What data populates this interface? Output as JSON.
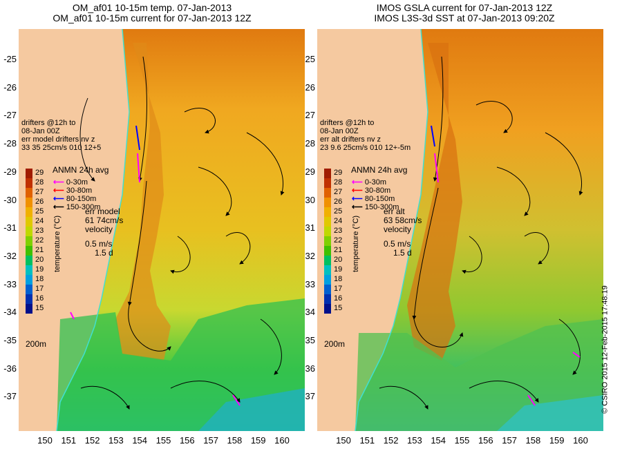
{
  "left_panel": {
    "title_line1": "OM_af01 10-15m temp. 07-Jan-2013",
    "title_line2": "OM_af01 10-15m current for 07-Jan-2013 12Z",
    "drifters_line1": "drifters @12h to",
    "drifters_line2": "08-Jan 00Z",
    "drifters_line3": "err model drifters nv z",
    "drifters_line4": "33    35    25cm/s 010 12+5",
    "legend_title": "ANMN 24h avg",
    "err_line1": "err model",
    "err_line2": "61 74cm/s",
    "velocity": "velocity",
    "scale_speed": "0.5 m/s",
    "scale_time": "1.5 d",
    "isobath": "200m"
  },
  "right_panel": {
    "title_line1": "IMOS GSLA current for 07-Jan-2013 12Z",
    "title_line2": "IMOS L3S-3d SST at 07-Jan-2013 09:20Z",
    "drifters_line1": "drifters @12h to",
    "drifters_line2": "08-Jan 00Z",
    "drifters_line3": "err alt drifters nv z",
    "drifters_line4": "23 9.6 25cm/s 010 12+-5m",
    "legend_title": "ANMN 24h avg",
    "err_line1": "err alt",
    "err_line2": "63 58cm/s",
    "velocity": "velocity",
    "scale_speed": "0.5 m/s",
    "scale_time": "1.5 d",
    "isobath": "200m"
  },
  "depth_legend": [
    {
      "label": "0-30m",
      "color": "#ff00ff"
    },
    {
      "label": "30-80m",
      "color": "#ff0000"
    },
    {
      "label": "80-150m",
      "color": "#0000ff"
    },
    {
      "label": "150-300m",
      "color": "#000000"
    }
  ],
  "colorbar": {
    "title": "temperature (°C)",
    "ticks": [
      "29",
      "28",
      "27",
      "26",
      "25",
      "24",
      "23",
      "22",
      "21",
      "20",
      "19",
      "18",
      "17",
      "16",
      "15"
    ],
    "colors": [
      "#a01c00",
      "#c03000",
      "#e06000",
      "#f09000",
      "#f0b000",
      "#e0c800",
      "#c0d800",
      "#80d000",
      "#40c000",
      "#00c060",
      "#00c0c0",
      "#00a0e0",
      "#0060d0",
      "#0030b0",
      "#00108a"
    ]
  },
  "latitude_labels": [
    "-25",
    "-26",
    "-27",
    "-28",
    "-29",
    "-30",
    "-31",
    "-32",
    "-33",
    "-34",
    "-35",
    "-36",
    "-37"
  ],
  "longitude_labels": [
    "150",
    "151",
    "152",
    "153",
    "154",
    "155",
    "156",
    "157",
    "158",
    "159",
    "160"
  ],
  "copyright": "© CSIRO 2015   12-Feb-2015 17:48:19",
  "colors": {
    "land": "#f5c9a0",
    "coast_line": "#40e0d0"
  }
}
